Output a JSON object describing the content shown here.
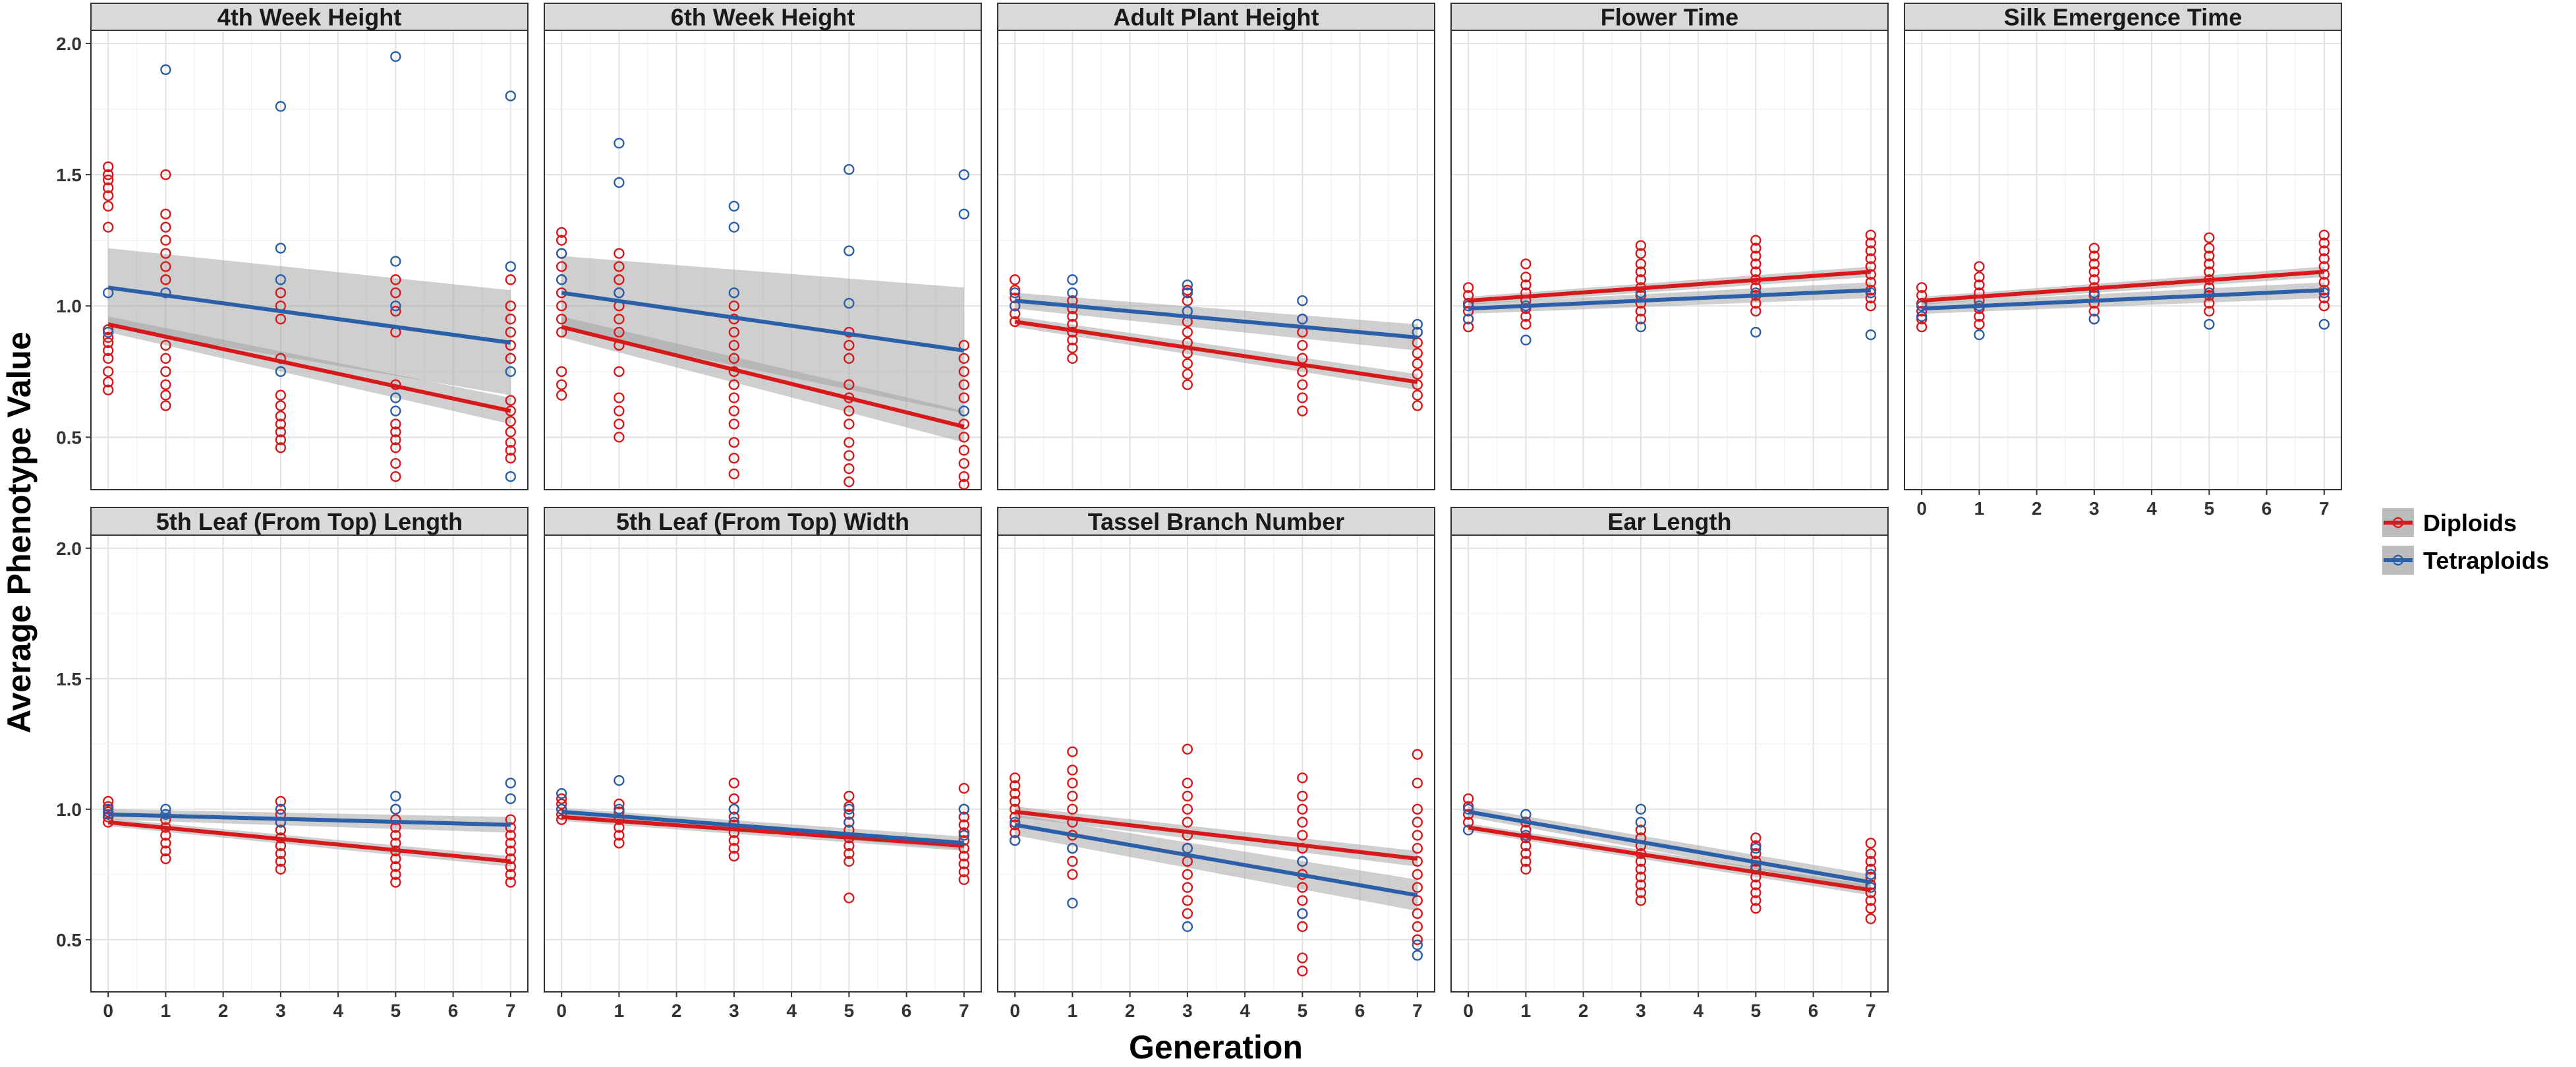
{
  "chart_data": {
    "type": "scatter",
    "xlabel": "Generation",
    "ylabel": "Average Phenotype Value",
    "x_ticks": [
      0,
      1,
      2,
      3,
      4,
      5,
      6,
      7
    ],
    "y_ticks": [
      0.5,
      1.0,
      1.5,
      2.0
    ],
    "y_tick_labels": [
      "0.5",
      "1.0",
      "1.5",
      "2.0"
    ],
    "xlim": [
      -0.3,
      7.3
    ],
    "ylim": [
      0.3,
      2.05
    ],
    "colors": {
      "Diploids": "#d7191c",
      "Tetraploids": "#2b5fa8"
    },
    "legend": [
      {
        "name": "Diploids",
        "color": "#d7191c"
      },
      {
        "name": "Tetraploids",
        "color": "#2b5fa8"
      }
    ],
    "legend_position": "right",
    "panels": [
      {
        "title": "4th Week Height",
        "fits": {
          "Diploids": {
            "start": 0.93,
            "end": 0.6,
            "ci_start": 0.03,
            "ci_end": 0.05
          },
          "Tetraploids": {
            "start": 1.07,
            "end": 0.86,
            "ci_start": 0.15,
            "ci_end": 0.2
          }
        },
        "points": {
          "Diploids": {
            "0": [
              0.68,
              0.71,
              0.75,
              0.8,
              0.83,
              0.86,
              0.88,
              0.91,
              1.3,
              1.38,
              1.42,
              1.45,
              1.48,
              1.5,
              1.53
            ],
            "1": [
              0.62,
              0.66,
              0.7,
              0.75,
              0.8,
              0.85,
              1.1,
              1.15,
              1.2,
              1.25,
              1.3,
              1.35,
              1.5
            ],
            "3": [
              0.46,
              0.49,
              0.52,
              0.55,
              0.58,
              0.62,
              0.66,
              0.8,
              0.95,
              1.0,
              1.05
            ],
            "5": [
              0.35,
              0.4,
              0.46,
              0.49,
              0.52,
              0.55,
              0.7,
              0.9,
              0.98,
              1.05,
              1.1
            ],
            "7": [
              0.42,
              0.45,
              0.48,
              0.52,
              0.56,
              0.6,
              0.64,
              0.8,
              0.85,
              0.9,
              0.95,
              1.0,
              1.1
            ]
          },
          "Tetraploids": {
            "0": [
              0.9,
              1.05
            ],
            "1": [
              1.9,
              1.05
            ],
            "3": [
              1.76,
              1.22,
              1.1,
              0.75
            ],
            "5": [
              1.95,
              1.17,
              1.0,
              0.65,
              0.6
            ],
            "7": [
              1.8,
              1.15,
              0.75,
              0.35
            ]
          }
        }
      },
      {
        "title": "6th Week Height",
        "fits": {
          "Diploids": {
            "start": 0.92,
            "end": 0.54,
            "ci_start": 0.04,
            "ci_end": 0.06
          },
          "Tetraploids": {
            "start": 1.05,
            "end": 0.83,
            "ci_start": 0.14,
            "ci_end": 0.24
          }
        },
        "points": {
          "Diploids": {
            "0": [
              0.66,
              0.7,
              0.75,
              0.9,
              0.95,
              1.0,
              1.05,
              1.1,
              1.15,
              1.2,
              1.25,
              1.28
            ],
            "1": [
              0.5,
              0.55,
              0.6,
              0.65,
              0.75,
              0.85,
              0.9,
              0.95,
              1.0,
              1.05,
              1.1,
              1.15,
              1.2
            ],
            "3": [
              0.36,
              0.42,
              0.48,
              0.55,
              0.6,
              0.65,
              0.7,
              0.75,
              0.8,
              0.85,
              0.9,
              0.95,
              1.0
            ],
            "5": [
              0.33,
              0.38,
              0.43,
              0.48,
              0.55,
              0.6,
              0.65,
              0.7,
              0.8,
              0.85,
              0.9
            ],
            "7": [
              0.32,
              0.35,
              0.4,
              0.45,
              0.5,
              0.55,
              0.6,
              0.65,
              0.7,
              0.75,
              0.8,
              0.85
            ]
          },
          "Tetraploids": {
            "0": [
              1.1,
              1.2
            ],
            "1": [
              1.62,
              1.47,
              1.05
            ],
            "3": [
              1.38,
              1.3,
              1.05
            ],
            "5": [
              1.52,
              1.21,
              1.01
            ],
            "7": [
              1.5,
              1.35,
              0.6
            ]
          }
        }
      },
      {
        "title": "Adult Plant Height",
        "fits": {
          "Diploids": {
            "start": 0.94,
            "end": 0.71,
            "ci_start": 0.02,
            "ci_end": 0.03
          },
          "Tetraploids": {
            "start": 1.02,
            "end": 0.88,
            "ci_start": 0.03,
            "ci_end": 0.05
          }
        },
        "points": {
          "Diploids": {
            "0": [
              0.94,
              0.97,
              1.0,
              1.03,
              1.06,
              1.1
            ],
            "1": [
              0.8,
              0.84,
              0.87,
              0.9,
              0.93,
              0.96,
              0.99,
              1.02
            ],
            "3": [
              0.7,
              0.74,
              0.78,
              0.82,
              0.86,
              0.9,
              0.94,
              0.98,
              1.02,
              1.06
            ],
            "5": [
              0.6,
              0.65,
              0.7,
              0.75,
              0.8,
              0.85,
              0.9,
              0.95
            ],
            "7": [
              0.62,
              0.66,
              0.7,
              0.74,
              0.78,
              0.82,
              0.86,
              0.9
            ]
          },
          "Tetraploids": {
            "0": [
              1.0,
              1.05
            ],
            "1": [
              1.05,
              1.1
            ],
            "3": [
              1.08,
              1.05,
              0.98
            ],
            "5": [
              1.02,
              0.95
            ],
            "7": [
              0.93,
              0.9
            ]
          }
        }
      },
      {
        "title": "Flower Time",
        "fits": {
          "Diploids": {
            "start": 1.02,
            "end": 1.13,
            "ci_start": 0.015,
            "ci_end": 0.02
          },
          "Tetraploids": {
            "start": 0.99,
            "end": 1.06,
            "ci_start": 0.02,
            "ci_end": 0.03
          }
        },
        "points": {
          "Diploids": {
            "0": [
              0.92,
              0.95,
              0.98,
              1.01,
              1.04,
              1.07
            ],
            "1": [
              0.93,
              0.96,
              0.99,
              1.02,
              1.05,
              1.08,
              1.11,
              1.16
            ],
            "3": [
              0.95,
              0.98,
              1.01,
              1.04,
              1.07,
              1.1,
              1.13,
              1.16,
              1.2,
              1.23
            ],
            "5": [
              0.98,
              1.01,
              1.04,
              1.07,
              1.1,
              1.13,
              1.16,
              1.19,
              1.22,
              1.25
            ],
            "7": [
              1.0,
              1.03,
              1.06,
              1.09,
              1.12,
              1.15,
              1.18,
              1.21,
              1.24,
              1.27
            ]
          },
          "Tetraploids": {
            "0": [
              0.95,
              1.0
            ],
            "1": [
              0.87,
              1.0
            ],
            "3": [
              0.92,
              1.05
            ],
            "5": [
              0.9,
              1.05
            ],
            "7": [
              0.89,
              1.05
            ]
          }
        }
      },
      {
        "title": "Silk Emergence Time",
        "fits": {
          "Diploids": {
            "start": 1.02,
            "end": 1.13,
            "ci_start": 0.015,
            "ci_end": 0.02
          },
          "Tetraploids": {
            "start": 0.99,
            "end": 1.06,
            "ci_start": 0.02,
            "ci_end": 0.03
          }
        },
        "points": {
          "Diploids": {
            "0": [
              0.92,
              0.95,
              0.98,
              1.01,
              1.04,
              1.07
            ],
            "1": [
              0.93,
              0.96,
              0.99,
              1.02,
              1.05,
              1.08,
              1.11,
              1.15
            ],
            "3": [
              0.95,
              0.98,
              1.01,
              1.04,
              1.07,
              1.1,
              1.13,
              1.16,
              1.19,
              1.22
            ],
            "5": [
              0.98,
              1.01,
              1.04,
              1.07,
              1.1,
              1.13,
              1.16,
              1.19,
              1.22,
              1.26
            ],
            "7": [
              1.0,
              1.03,
              1.06,
              1.09,
              1.12,
              1.15,
              1.18,
              1.21,
              1.24,
              1.27
            ]
          },
          "Tetraploids": {
            "0": [
              0.96,
              1.0
            ],
            "1": [
              0.89,
              1.0
            ],
            "3": [
              0.95,
              1.05
            ],
            "5": [
              0.93,
              1.05
            ],
            "7": [
              0.93,
              1.05
            ]
          }
        }
      },
      {
        "title": "5th Leaf (From Top) Length",
        "fits": {
          "Diploids": {
            "start": 0.95,
            "end": 0.8,
            "ci_start": 0.015,
            "ci_end": 0.02
          },
          "Tetraploids": {
            "start": 0.98,
            "end": 0.94,
            "ci_start": 0.02,
            "ci_end": 0.03
          }
        },
        "points": {
          "Diploids": {
            "0": [
              0.95,
              0.97,
              0.99,
              1.01,
              1.03
            ],
            "1": [
              0.81,
              0.84,
              0.87,
              0.9,
              0.93,
              0.96
            ],
            "3": [
              0.77,
              0.8,
              0.83,
              0.86,
              0.89,
              0.92,
              0.95,
              0.98,
              1.03
            ],
            "5": [
              0.72,
              0.75,
              0.78,
              0.81,
              0.84,
              0.87,
              0.9,
              0.93,
              0.96,
              1.0
            ],
            "7": [
              0.72,
              0.75,
              0.78,
              0.81,
              0.84,
              0.87,
              0.9,
              0.93,
              0.96
            ]
          },
          "Tetraploids": {
            "0": [
              0.98,
              1.0
            ],
            "1": [
              0.98,
              1.0
            ],
            "3": [
              1.0,
              0.95
            ],
            "5": [
              1.05,
              1.0
            ],
            "7": [
              1.1,
              1.04
            ]
          }
        }
      },
      {
        "title": "5th Leaf (From Top) Width",
        "fits": {
          "Diploids": {
            "start": 0.97,
            "end": 0.86,
            "ci_start": 0.015,
            "ci_end": 0.02
          },
          "Tetraploids": {
            "start": 0.99,
            "end": 0.87,
            "ci_start": 0.015,
            "ci_end": 0.025
          }
        },
        "points": {
          "Diploids": {
            "0": [
              0.96,
              0.98,
              1.0,
              1.02,
              1.04
            ],
            "1": [
              0.87,
              0.9,
              0.93,
              0.96,
              0.99,
              1.02
            ],
            "3": [
              0.82,
              0.85,
              0.88,
              0.91,
              0.94,
              0.97,
              1.0,
              1.04,
              1.1
            ],
            "5": [
              0.66,
              0.8,
              0.83,
              0.86,
              0.89,
              0.92,
              0.95,
              0.98,
              1.01,
              1.05
            ],
            "7": [
              0.73,
              0.76,
              0.79,
              0.82,
              0.85,
              0.88,
              0.91,
              0.94,
              0.97,
              1.0,
              1.08
            ]
          },
          "Tetraploids": {
            "0": [
              1.06,
              1.0
            ],
            "1": [
              1.11,
              1.0
            ],
            "3": [
              1.0,
              0.95
            ],
            "5": [
              1.0,
              0.95
            ],
            "7": [
              1.0,
              0.9
            ]
          }
        }
      },
      {
        "title": "Tassel Branch Number",
        "fits": {
          "Diploids": {
            "start": 0.99,
            "end": 0.81,
            "ci_start": 0.02,
            "ci_end": 0.03
          },
          "Tetraploids": {
            "start": 0.94,
            "end": 0.67,
            "ci_start": 0.04,
            "ci_end": 0.06
          }
        },
        "points": {
          "Diploids": {
            "0": [
              0.88,
              0.91,
              0.94,
              0.97,
              1.0,
              1.03,
              1.06,
              1.09,
              1.12
            ],
            "1": [
              0.75,
              0.8,
              0.85,
              0.9,
              0.95,
              1.0,
              1.05,
              1.1,
              1.15,
              1.22
            ],
            "3": [
              0.6,
              0.65,
              0.7,
              0.75,
              0.8,
              0.85,
              0.9,
              0.95,
              1.0,
              1.05,
              1.1,
              1.23
            ],
            "5": [
              0.38,
              0.43,
              0.55,
              0.6,
              0.65,
              0.7,
              0.75,
              0.8,
              0.85,
              0.9,
              0.95,
              1.0,
              1.05,
              1.12
            ],
            "7": [
              0.5,
              0.55,
              0.6,
              0.65,
              0.7,
              0.75,
              0.8,
              0.85,
              0.9,
              0.95,
              1.0,
              1.1,
              1.21
            ]
          },
          "Tetraploids": {
            "0": [
              0.88,
              0.95
            ],
            "1": [
              0.64,
              0.85
            ],
            "3": [
              0.55,
              0.85
            ],
            "5": [
              0.6,
              0.8
            ],
            "7": [
              0.44,
              0.48
            ]
          }
        }
      },
      {
        "title": "Ear Length",
        "fits": {
          "Diploids": {
            "start": 0.93,
            "end": 0.69,
            "ci_start": 0.015,
            "ci_end": 0.02
          },
          "Tetraploids": {
            "start": 0.99,
            "end": 0.72,
            "ci_start": 0.02,
            "ci_end": 0.03
          }
        },
        "points": {
          "Diploids": {
            "0": [
              0.95,
              0.98,
              1.01,
              1.04
            ],
            "1": [
              0.77,
              0.8,
              0.83,
              0.86,
              0.89,
              0.92,
              0.95
            ],
            "3": [
              0.65,
              0.68,
              0.71,
              0.74,
              0.77,
              0.8,
              0.83,
              0.86,
              0.89,
              0.92
            ],
            "5": [
              0.62,
              0.65,
              0.68,
              0.71,
              0.74,
              0.77,
              0.8,
              0.83,
              0.86,
              0.89
            ],
            "7": [
              0.58,
              0.62,
              0.65,
              0.68,
              0.71,
              0.74,
              0.77,
              0.8,
              0.83,
              0.87
            ]
          },
          "Tetraploids": {
            "0": [
              0.92,
              1.0
            ],
            "1": [
              0.98,
              0.9
            ],
            "3": [
              1.0,
              0.95
            ],
            "5": [
              0.85,
              0.78
            ],
            "7": [
              0.75,
              0.7
            ]
          }
        }
      }
    ]
  }
}
